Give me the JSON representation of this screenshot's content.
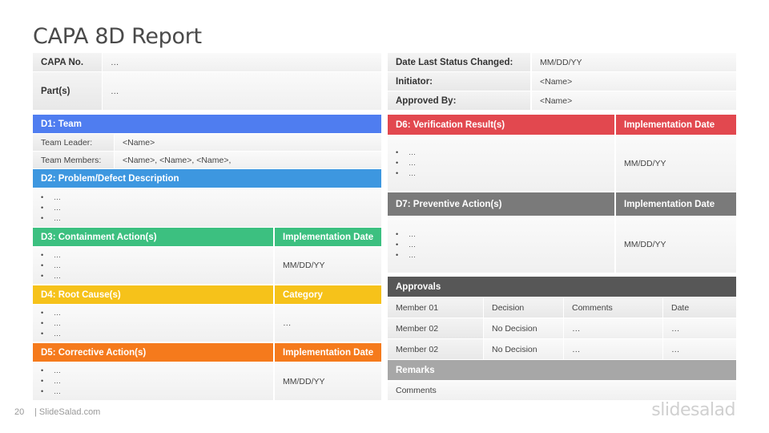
{
  "title": "CAPA 8D Report",
  "colors": {
    "blue": "#4f7df0",
    "lightblue": "#3d97e0",
    "green": "#3cc080",
    "yellow": "#f6c21a",
    "orange": "#f57a1c",
    "red": "#e2484f",
    "darkgray": "#7a7a7a",
    "charcoal": "#575757",
    "midgray": "#a7a7a7"
  },
  "header_left": {
    "capa_label": "CAPA No.",
    "capa_value": "…",
    "parts_label": "Part(s)",
    "parts_value": "…"
  },
  "header_right": {
    "date_label": "Date Last Status Changed:",
    "date_value": "MM/DD/YY",
    "initiator_label": "Initiator:",
    "initiator_value": "<Name>",
    "approved_label": "Approved By:",
    "approved_value": "<Name>"
  },
  "d1": {
    "header": "D1: Team",
    "leader_label": "Team Leader:",
    "leader_value": "<Name>",
    "members_label": "Team Members:",
    "members_value": "<Name>, <Name>, <Name>,"
  },
  "d2": {
    "header": "D2: Problem/Defect Description",
    "bullets": [
      "…",
      "…",
      "…"
    ]
  },
  "d3": {
    "header": "D3: Containment Action(s)",
    "side_header": "Implementation Date",
    "bullets": [
      "…",
      "…",
      "…"
    ],
    "side_value": "MM/DD/YY"
  },
  "d4": {
    "header": "D4: Root Cause(s)",
    "side_header": "Category",
    "bullets": [
      "…",
      "…",
      "…"
    ],
    "side_value": "…"
  },
  "d5": {
    "header": "D5: Corrective Action(s)",
    "side_header": "Implementation Date",
    "bullets": [
      "…",
      "…",
      "…"
    ],
    "side_value": "MM/DD/YY"
  },
  "d6": {
    "header": "D6: Verification Result(s)",
    "side_header": "Implementation Date",
    "bullets": [
      "…",
      "…",
      "…"
    ],
    "side_value": "MM/DD/YY"
  },
  "d7": {
    "header": "D7: Preventive Action(s)",
    "side_header": "Implementation Date",
    "bullets": [
      "…",
      "…",
      "…"
    ],
    "side_value": "MM/DD/YY"
  },
  "approvals": {
    "header": "Approvals",
    "rows": [
      [
        "Member 01",
        "Decision",
        "Comments",
        "Date"
      ],
      [
        "Member 02",
        "No Decision",
        "…",
        "…"
      ],
      [
        "Member 02",
        "No Decision",
        "…",
        "…"
      ]
    ]
  },
  "remarks": {
    "header": "Remarks",
    "value": "Comments"
  },
  "footer": {
    "page": "20",
    "site": "| SlideSalad.com",
    "logo": "slidesalad"
  }
}
